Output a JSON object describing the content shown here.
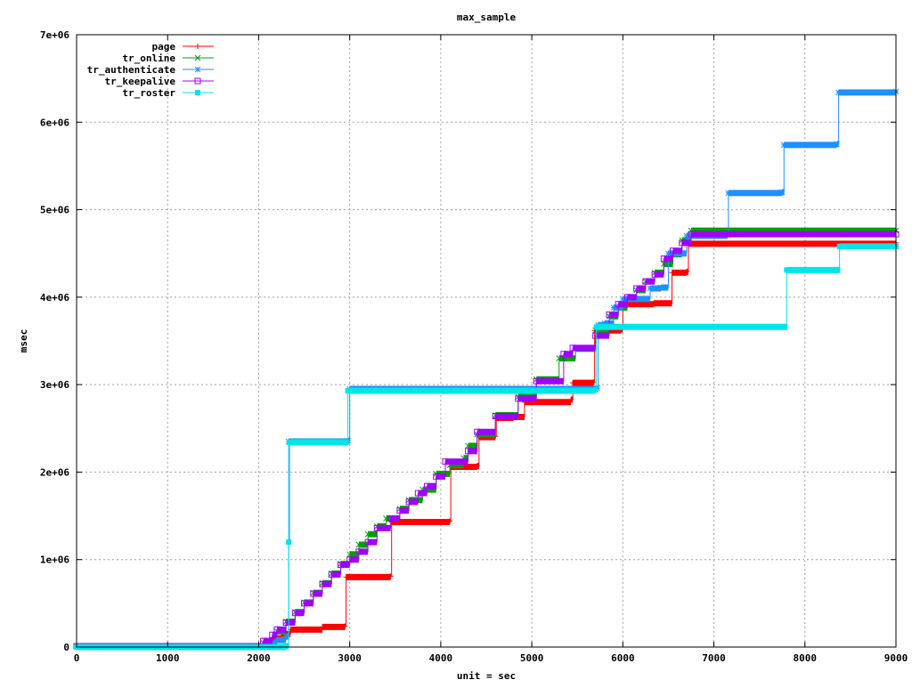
{
  "chart_data": {
    "type": "line",
    "title": "max_sample",
    "xlabel": "unit = sec",
    "ylabel": "msec",
    "xlim": [
      0,
      9000
    ],
    "ylim": [
      0,
      7000000
    ],
    "xticks": [
      0,
      1000,
      2000,
      3000,
      4000,
      5000,
      6000,
      7000,
      8000,
      9000
    ],
    "xtick_labels": [
      "0",
      "1000",
      "2000",
      "3000",
      "4000",
      "5000",
      "6000",
      "7000",
      "8000",
      "9000"
    ],
    "yticks": [
      0,
      1000000,
      2000000,
      3000000,
      4000000,
      5000000,
      6000000,
      7000000
    ],
    "ytick_labels": [
      "0",
      "1e+06",
      "2e+06",
      "3e+06",
      "4e+06",
      "5e+06",
      "6e+06",
      "7e+06"
    ],
    "grid": true,
    "legend_position": "top-left",
    "series": [
      {
        "name": "page",
        "color": "#ff0000",
        "marker": "plus",
        "points": [
          [
            0,
            10000
          ],
          [
            1950,
            10000
          ],
          [
            2050,
            40000
          ],
          [
            2150,
            100000
          ],
          [
            2250,
            150000
          ],
          [
            2350,
            200000
          ],
          [
            2700,
            230000
          ],
          [
            2950,
            240000
          ],
          [
            2960,
            800000
          ],
          [
            3450,
            810000
          ],
          [
            3460,
            1430000
          ],
          [
            4100,
            1440000
          ],
          [
            4110,
            2060000
          ],
          [
            4400,
            2070000
          ],
          [
            4420,
            2400000
          ],
          [
            4600,
            2410000
          ],
          [
            4610,
            2620000
          ],
          [
            4800,
            2630000
          ],
          [
            4920,
            2800000
          ],
          [
            5430,
            2830000
          ],
          [
            5450,
            3020000
          ],
          [
            5680,
            3030000
          ],
          [
            5690,
            3620000
          ],
          [
            5980,
            3630000
          ],
          [
            6000,
            3920000
          ],
          [
            6340,
            3930000
          ],
          [
            6540,
            4280000
          ],
          [
            6700,
            4290000
          ],
          [
            6720,
            4610000
          ],
          [
            9000,
            4620000
          ]
        ]
      },
      {
        "name": "tr_online",
        "color": "#00a000",
        "marker": "x",
        "points": [
          [
            0,
            10000
          ],
          [
            1950,
            10000
          ],
          [
            2050,
            50000
          ],
          [
            2200,
            180000
          ],
          [
            2300,
            290000
          ],
          [
            2400,
            400000
          ],
          [
            2500,
            510000
          ],
          [
            2600,
            620000
          ],
          [
            2700,
            730000
          ],
          [
            2800,
            840000
          ],
          [
            2900,
            950000
          ],
          [
            3000,
            1060000
          ],
          [
            3100,
            1170000
          ],
          [
            3200,
            1290000
          ],
          [
            3300,
            1380000
          ],
          [
            3400,
            1470000
          ],
          [
            3550,
            1580000
          ],
          [
            3650,
            1680000
          ],
          [
            3800,
            1800000
          ],
          [
            3950,
            1980000
          ],
          [
            4100,
            2080000
          ],
          [
            4250,
            2160000
          ],
          [
            4300,
            2300000
          ],
          [
            4400,
            2430000
          ],
          [
            4600,
            2650000
          ],
          [
            4850,
            2860000
          ],
          [
            5050,
            3060000
          ],
          [
            5300,
            3300000
          ],
          [
            5480,
            3410000
          ],
          [
            5700,
            3620000
          ],
          [
            5850,
            3780000
          ],
          [
            5950,
            3880000
          ],
          [
            6050,
            3980000
          ],
          [
            6150,
            4080000
          ],
          [
            6250,
            4180000
          ],
          [
            6350,
            4280000
          ],
          [
            6450,
            4380000
          ],
          [
            6550,
            4490000
          ],
          [
            6650,
            4650000
          ],
          [
            6750,
            4760000
          ],
          [
            9000,
            4760000
          ]
        ]
      },
      {
        "name": "tr_authenticate",
        "color": "#1e90ff",
        "marker": "star",
        "points": [
          [
            0,
            10000
          ],
          [
            1950,
            10000
          ],
          [
            2100,
            40000
          ],
          [
            2200,
            80000
          ],
          [
            2300,
            120000
          ],
          [
            2330,
            2350000
          ],
          [
            2980,
            2360000
          ],
          [
            3000,
            2950000
          ],
          [
            5720,
            2960000
          ],
          [
            5730,
            3680000
          ],
          [
            5800,
            3700000
          ],
          [
            5900,
            3880000
          ],
          [
            6000,
            3980000
          ],
          [
            6300,
            4100000
          ],
          [
            6420,
            4110000
          ],
          [
            6500,
            4500000
          ],
          [
            6700,
            4700000
          ],
          [
            7150,
            4710000
          ],
          [
            7160,
            5190000
          ],
          [
            7750,
            5200000
          ],
          [
            7770,
            5740000
          ],
          [
            8350,
            5750000
          ],
          [
            8370,
            6340000
          ],
          [
            9000,
            6350000
          ]
        ]
      },
      {
        "name": "tr_keepalive",
        "color": "#a000ff",
        "marker": "square",
        "points": [
          [
            0,
            10000
          ],
          [
            1950,
            10000
          ],
          [
            2050,
            70000
          ],
          [
            2150,
            140000
          ],
          [
            2200,
            200000
          ],
          [
            2300,
            280000
          ],
          [
            2400,
            390000
          ],
          [
            2500,
            500000
          ],
          [
            2600,
            610000
          ],
          [
            2700,
            720000
          ],
          [
            2800,
            830000
          ],
          [
            2900,
            940000
          ],
          [
            3000,
            1000000
          ],
          [
            3100,
            1090000
          ],
          [
            3200,
            1200000
          ],
          [
            3300,
            1360000
          ],
          [
            3450,
            1470000
          ],
          [
            3550,
            1560000
          ],
          [
            3650,
            1660000
          ],
          [
            3750,
            1760000
          ],
          [
            3850,
            1840000
          ],
          [
            3950,
            1950000
          ],
          [
            4050,
            2120000
          ],
          [
            4300,
            2240000
          ],
          [
            4400,
            2460000
          ],
          [
            4600,
            2640000
          ],
          [
            4850,
            2840000
          ],
          [
            5050,
            3040000
          ],
          [
            5350,
            3350000
          ],
          [
            5450,
            3420000
          ],
          [
            5700,
            3560000
          ],
          [
            5850,
            3800000
          ],
          [
            5950,
            3920000
          ],
          [
            6050,
            4000000
          ],
          [
            6150,
            4100000
          ],
          [
            6250,
            4180000
          ],
          [
            6350,
            4260000
          ],
          [
            6450,
            4440000
          ],
          [
            6550,
            4530000
          ],
          [
            6650,
            4620000
          ],
          [
            6750,
            4720000
          ],
          [
            9000,
            4720000
          ]
        ]
      },
      {
        "name": "tr_roster",
        "color": "#00e5e5",
        "marker": "filled-square",
        "points": [
          [
            0,
            0
          ],
          [
            1950,
            0
          ],
          [
            2300,
            10000
          ],
          [
            2330,
            1200000
          ],
          [
            2340,
            2340000
          ],
          [
            2960,
            2340000
          ],
          [
            2980,
            2930000
          ],
          [
            5700,
            2940000
          ],
          [
            5710,
            3660000
          ],
          [
            7780,
            3660000
          ],
          [
            7800,
            4310000
          ],
          [
            8360,
            4310000
          ],
          [
            8380,
            4580000
          ],
          [
            9000,
            4580000
          ]
        ]
      }
    ]
  }
}
